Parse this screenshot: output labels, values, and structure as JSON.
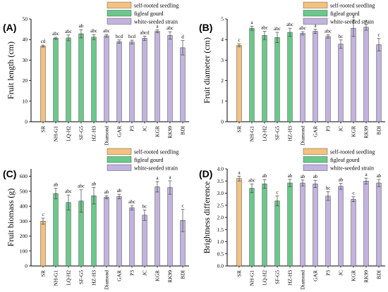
{
  "colors": {
    "self-rooted seedling": "#f5c27d",
    "figleaf gourd": "#6ac98a",
    "white-seeded strain": "#c2b3e0",
    "bar_stroke": "#333333",
    "axis": "#000000"
  },
  "chart_data": [
    {
      "type": "bar",
      "panel_label": "(A)",
      "ylabel": "Fruit length (cm)",
      "ylim": [
        0,
        50
      ],
      "yticks": [
        0,
        10,
        20,
        30,
        40,
        50
      ],
      "legend": [
        "self-rooted seedling",
        "figleaf gourd",
        "white-seeded strain"
      ],
      "legend_position": "top-right",
      "categories": [
        "SR",
        "NH-G1",
        "LQ-H2",
        "SF-G5",
        "HZ-H3",
        "Diamond",
        "GAR",
        "P3",
        "JC",
        "KGR",
        "RK99",
        "BDI"
      ],
      "groups": [
        "self-rooted seedling",
        "figleaf gourd",
        "figleaf gourd",
        "figleaf gourd",
        "figleaf gourd",
        "white-seeded strain",
        "white-seeded strain",
        "white-seeded strain",
        "white-seeded strain",
        "white-seeded strain",
        "white-seeded strain",
        "white-seeded strain"
      ],
      "values": [
        36.8,
        40.6,
        40.8,
        42.8,
        41.2,
        41.8,
        39.0,
        38.8,
        40.6,
        44.0,
        42.0,
        36.0
      ],
      "errors": [
        0.5,
        0.5,
        1.4,
        2.0,
        1.2,
        0.7,
        0.8,
        0.9,
        1.0,
        0.7,
        1.8,
        3.5
      ],
      "labels": [
        "cd",
        "abc",
        "abc",
        "ab",
        "abc",
        "abc",
        "bcd",
        "bcd",
        "abcd",
        "a",
        "abc",
        "d"
      ]
    },
    {
      "type": "bar",
      "panel_label": "(B)",
      "ylabel": "Fruit diameter (cm)",
      "ylim": [
        0,
        5
      ],
      "yticks": [
        0,
        1,
        2,
        3,
        4,
        5
      ],
      "legend": [
        "self-rooted seedling",
        "figleaf gourd",
        "white-seeded strain"
      ],
      "legend_position": "top-right",
      "categories": [
        "SR",
        "NH-G1",
        "LQ-H2",
        "SF-G5",
        "HZ-H3",
        "Diamond",
        "GAR",
        "P3",
        "JC",
        "KGR",
        "RK99",
        "BDI"
      ],
      "groups": [
        "self-rooted seedling",
        "figleaf gourd",
        "figleaf gourd",
        "figleaf gourd",
        "figleaf gourd",
        "white-seeded strain",
        "white-seeded strain",
        "white-seeded strain",
        "white-seeded strain",
        "white-seeded strain",
        "white-seeded strain",
        "white-seeded strain"
      ],
      "values": [
        3.72,
        4.55,
        4.2,
        4.1,
        4.35,
        4.3,
        4.4,
        4.15,
        3.78,
        4.55,
        4.6,
        3.75
      ],
      "errors": [
        0.08,
        0.1,
        0.2,
        0.25,
        0.2,
        0.08,
        0.1,
        0.08,
        0.2,
        0.4,
        0.15,
        0.3
      ],
      "labels": [
        "c",
        "a",
        "abc",
        "abc",
        "abc",
        "abc",
        "a",
        "abc",
        "bc",
        "a",
        "a",
        "c"
      ]
    },
    {
      "type": "bar",
      "panel_label": "(C)",
      "ylabel": "Fruit biomass (g)",
      "ylim": [
        0,
        650
      ],
      "yticks": [
        0,
        100,
        200,
        300,
        400,
        500,
        600
      ],
      "legend": [
        "self-rooted seedling",
        "figleaf gourd",
        "white-seeded strain"
      ],
      "legend_position": "top-right",
      "categories": [
        "SR",
        "NH-G1",
        "LQ-H2",
        "SF-G5",
        "HZ-H3",
        "Diamond",
        "GAR",
        "P3",
        "JC",
        "KGR",
        "RK99",
        "BDI"
      ],
      "groups": [
        "self-rooted seedling",
        "figleaf gourd",
        "figleaf gourd",
        "figleaf gourd",
        "figleaf gourd",
        "white-seeded strain",
        "white-seeded strain",
        "white-seeded strain",
        "white-seeded strain",
        "white-seeded strain",
        "white-seeded strain",
        "white-seeded strain"
      ],
      "values": [
        300,
        485,
        425,
        435,
        470,
        460,
        465,
        390,
        340,
        530,
        525,
        305
      ],
      "errors": [
        20,
        35,
        50,
        75,
        55,
        10,
        15,
        15,
        35,
        35,
        45,
        75
      ],
      "labels": [
        "c",
        "ab",
        "abc",
        "abc",
        "ab",
        "ab",
        "ab",
        "abc",
        "bc",
        "a",
        "a",
        "c"
      ]
    },
    {
      "type": "bar",
      "panel_label": "(D)",
      "ylabel": "Brightness difference",
      "ylim": [
        0,
        4.0
      ],
      "yticks": [
        0.0,
        0.5,
        1.0,
        1.5,
        2.0,
        2.5,
        3.0,
        3.5,
        4.0
      ],
      "legend": [
        "self-rooted seedling",
        "figleaf gourd",
        "white-seeded strain"
      ],
      "legend_position": "top-right",
      "categories": [
        "SR",
        "NH-G1",
        "LQ-H2",
        "SF-G5",
        "HZ-H3",
        "Diamond",
        "GAR",
        "P3",
        "JC",
        "KGR",
        "RK99",
        "BDI"
      ],
      "groups": [
        "self-rooted seedling",
        "figleaf gourd",
        "figleaf gourd",
        "figleaf gourd",
        "figleaf gourd",
        "white-seeded strain",
        "white-seeded strain",
        "white-seeded strain",
        "white-seeded strain",
        "white-seeded strain",
        "white-seeded strain",
        "white-seeded strain"
      ],
      "values": [
        3.6,
        3.2,
        3.38,
        2.68,
        3.42,
        3.42,
        3.38,
        2.88,
        3.28,
        2.75,
        3.5,
        3.42
      ],
      "errors": [
        0.1,
        0.18,
        0.18,
        0.2,
        0.15,
        0.12,
        0.15,
        0.18,
        0.12,
        0.1,
        0.12,
        0.15
      ],
      "labels": [
        "a",
        "abc",
        "ab",
        "c",
        "ab",
        "ab",
        "ab",
        "bc",
        "ab",
        "c",
        "a",
        "ab"
      ]
    }
  ]
}
